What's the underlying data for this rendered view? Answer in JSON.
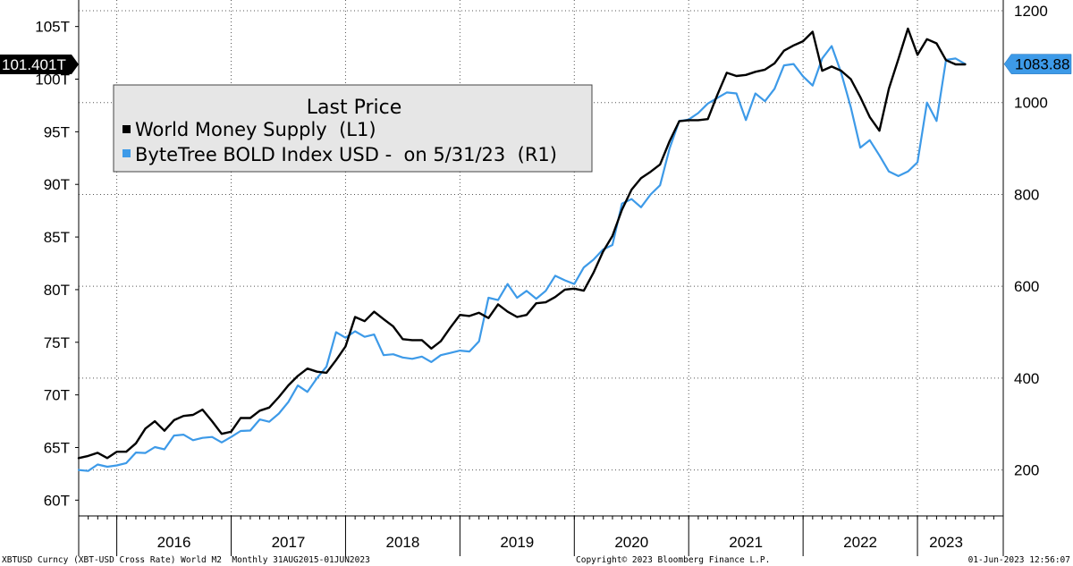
{
  "chart_data": {
    "type": "line",
    "legend": {
      "title": "Last Price",
      "placement": "top-left",
      "entries": [
        {
          "label": "World Money Supply  (L1)",
          "color": "#000000"
        },
        {
          "label": "ByteTree BOLD Index USD -  on 5/31/23  (R1)",
          "color": "#3d9ae8"
        }
      ]
    },
    "left_axis": {
      "ylim": [
        58.5,
        106.5
      ],
      "ticks": [
        60,
        65,
        70,
        75,
        80,
        85,
        90,
        95,
        100,
        105
      ],
      "tick_labels": [
        "60T",
        "65T",
        "70T",
        "75T",
        "80T",
        "85T",
        "90T",
        "95T",
        "100T",
        "105T"
      ]
    },
    "right_axis": {
      "ylim": [
        100,
        1200
      ],
      "ticks": [
        200,
        400,
        600,
        800,
        1000,
        1200
      ],
      "tick_labels": [
        "200",
        "400",
        "600",
        "800",
        "1000",
        "1200"
      ]
    },
    "x_axis": {
      "start": 2015.667,
      "end": 2023.75,
      "year_labels": [
        "2016",
        "2017",
        "2018",
        "2019",
        "2020",
        "2021",
        "2022",
        "2023"
      ],
      "year_label_x": [
        2016.5,
        2017.5,
        2018.5,
        2019.5,
        2020.5,
        2021.5,
        2022.5,
        2023.25
      ],
      "year_separators": [
        2016,
        2017,
        2018,
        2019,
        2020,
        2021,
        2022,
        2023
      ]
    },
    "grid": true,
    "last_value_tags": {
      "left": {
        "label": "101.401T",
        "value": 101.401
      },
      "right": {
        "label": "1083.88",
        "value": 1083.88
      }
    },
    "series": [
      {
        "name": "World Money Supply  (L1)",
        "axis": "left",
        "color": "#000000",
        "x": [
          2015.667,
          2015.75,
          2015.833,
          2015.917,
          2016.0,
          2016.083,
          2016.167,
          2016.25,
          2016.333,
          2016.417,
          2016.5,
          2016.583,
          2016.667,
          2016.75,
          2016.833,
          2016.917,
          2017.0,
          2017.083,
          2017.167,
          2017.25,
          2017.333,
          2017.417,
          2017.5,
          2017.583,
          2017.667,
          2017.75,
          2017.833,
          2017.917,
          2018.0,
          2018.083,
          2018.167,
          2018.25,
          2018.333,
          2018.417,
          2018.5,
          2018.583,
          2018.667,
          2018.75,
          2018.833,
          2018.917,
          2019.0,
          2019.083,
          2019.167,
          2019.25,
          2019.333,
          2019.417,
          2019.5,
          2019.583,
          2019.667,
          2019.75,
          2019.833,
          2019.917,
          2020.0,
          2020.083,
          2020.167,
          2020.25,
          2020.333,
          2020.417,
          2020.5,
          2020.583,
          2020.667,
          2020.75,
          2020.833,
          2020.917,
          2021.0,
          2021.083,
          2021.167,
          2021.25,
          2021.333,
          2021.417,
          2021.5,
          2021.583,
          2021.667,
          2021.75,
          2021.833,
          2021.917,
          2022.0,
          2022.083,
          2022.167,
          2022.25,
          2022.333,
          2022.417,
          2022.5,
          2022.583,
          2022.667,
          2022.75,
          2022.833,
          2022.917,
          2023.0,
          2023.083,
          2023.167,
          2023.25,
          2023.333,
          2023.417
        ],
        "values": [
          64.0,
          64.2,
          64.5,
          64.0,
          64.6,
          64.6,
          65.4,
          66.8,
          67.5,
          66.6,
          67.6,
          68.0,
          68.1,
          68.6,
          67.5,
          66.3,
          66.5,
          67.8,
          67.8,
          68.5,
          68.8,
          69.8,
          70.9,
          71.8,
          72.5,
          72.2,
          72.1,
          73.3,
          74.6,
          77.4,
          77.0,
          77.9,
          77.2,
          76.5,
          75.3,
          75.2,
          75.2,
          74.4,
          75.1,
          76.4,
          77.6,
          77.5,
          77.8,
          77.3,
          78.6,
          77.9,
          77.4,
          77.6,
          78.7,
          78.8,
          79.3,
          80.0,
          80.1,
          79.9,
          81.6,
          83.6,
          85.1,
          87.6,
          89.5,
          90.6,
          91.2,
          91.9,
          94.1,
          96.0,
          96.1,
          96.1,
          96.2,
          98.5,
          100.6,
          100.3,
          100.4,
          100.7,
          100.9,
          101.5,
          102.7,
          103.2,
          103.6,
          104.5,
          100.8,
          101.2,
          100.8,
          100.0,
          98.3,
          96.4,
          95.1,
          99.1,
          101.9,
          104.8,
          102.3,
          103.8,
          103.4,
          101.8,
          101.4,
          101.4
        ]
      },
      {
        "name": "ByteTree BOLD Index USD -  on 5/31/23  (R1)",
        "axis": "right",
        "color": "#3d9ae8",
        "x": [
          2015.667,
          2015.75,
          2015.833,
          2015.917,
          2016.0,
          2016.083,
          2016.167,
          2016.25,
          2016.333,
          2016.417,
          2016.5,
          2016.583,
          2016.667,
          2016.75,
          2016.833,
          2016.917,
          2017.0,
          2017.083,
          2017.167,
          2017.25,
          2017.333,
          2017.417,
          2017.5,
          2017.583,
          2017.667,
          2017.75,
          2017.833,
          2017.917,
          2018.0,
          2018.083,
          2018.167,
          2018.25,
          2018.333,
          2018.417,
          2018.5,
          2018.583,
          2018.667,
          2018.75,
          2018.833,
          2018.917,
          2019.0,
          2019.083,
          2019.167,
          2019.25,
          2019.333,
          2019.417,
          2019.5,
          2019.583,
          2019.667,
          2019.75,
          2019.833,
          2019.917,
          2020.0,
          2020.083,
          2020.167,
          2020.25,
          2020.333,
          2020.417,
          2020.5,
          2020.583,
          2020.667,
          2020.75,
          2020.833,
          2020.917,
          2021.0,
          2021.083,
          2021.167,
          2021.25,
          2021.333,
          2021.417,
          2021.5,
          2021.583,
          2021.667,
          2021.75,
          2021.833,
          2021.917,
          2022.0,
          2022.083,
          2022.167,
          2022.25,
          2022.333,
          2022.417,
          2022.5,
          2022.583,
          2022.667,
          2022.75,
          2022.833,
          2022.917,
          2023.0,
          2023.083,
          2023.167,
          2023.25,
          2023.333,
          2023.417
        ],
        "values": [
          200,
          198,
          212,
          207,
          210,
          215,
          238,
          237,
          250,
          245,
          275,
          277,
          265,
          270,
          272,
          260,
          272,
          285,
          286,
          310,
          305,
          323,
          348,
          384,
          370,
          400,
          425,
          500,
          488,
          502,
          490,
          495,
          450,
          452,
          445,
          442,
          447,
          435,
          450,
          455,
          460,
          458,
          480,
          575,
          570,
          605,
          575,
          590,
          573,
          590,
          623,
          613,
          605,
          641,
          658,
          680,
          690,
          780,
          790,
          772,
          800,
          820,
          900,
          960,
          963,
          977,
          998,
          1010,
          1022,
          1020,
          962,
          1020,
          1003,
          1030,
          1081,
          1084,
          1057,
          1037,
          1096,
          1123,
          1065,
          990,
          902,
          918,
          885,
          850,
          840,
          850,
          870,
          1000,
          960,
          1093,
          1096,
          1083.88
        ]
      }
    ]
  },
  "footer": {
    "left": "XBTUSD Curncy (XBT-USD Cross Rate) World M2  Monthly 31AUG2015-01JUN2023",
    "center": "Copyright© 2023 Bloomberg Finance L.P.",
    "right": "01-Jun-2023 12:56:07"
  }
}
